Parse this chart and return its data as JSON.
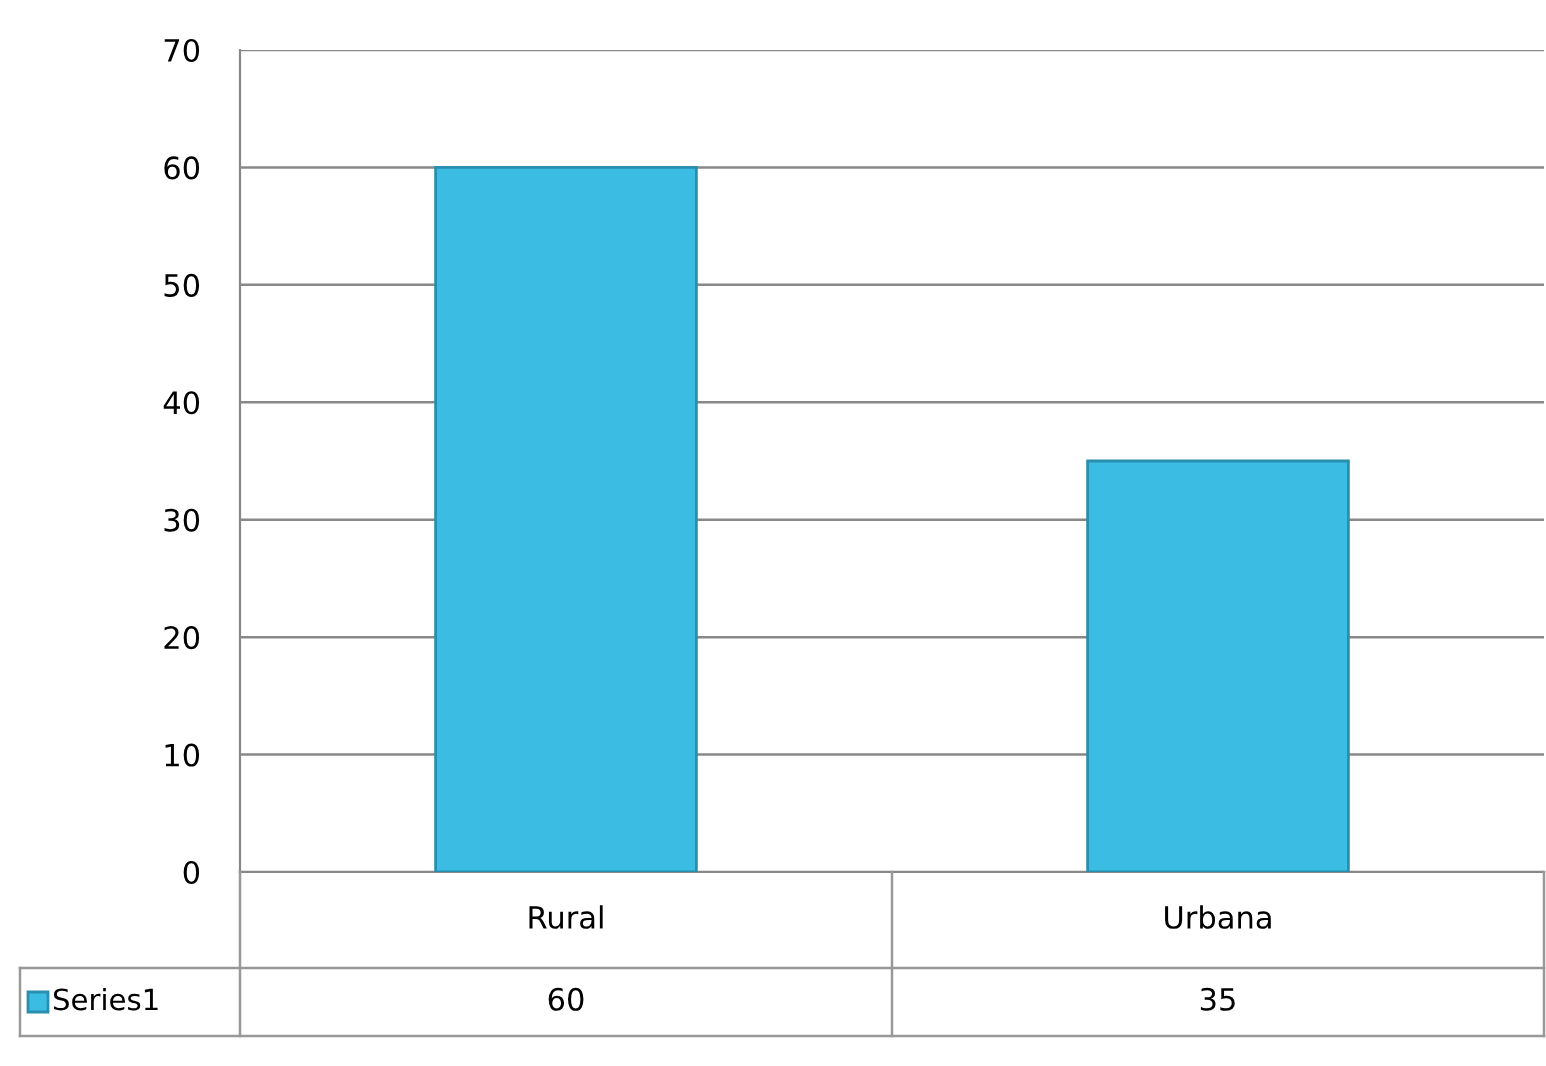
{
  "chart_data": {
    "type": "bar",
    "categories": [
      "Rural",
      "Urbana"
    ],
    "series": [
      {
        "name": "Series1",
        "color": "#3bbde3",
        "values": [
          60,
          35
        ]
      }
    ],
    "ylim": [
      0,
      70
    ],
    "yticks": [
      0,
      10,
      20,
      30,
      40,
      50,
      60,
      70
    ],
    "grid": "y",
    "data_labels": true
  }
}
